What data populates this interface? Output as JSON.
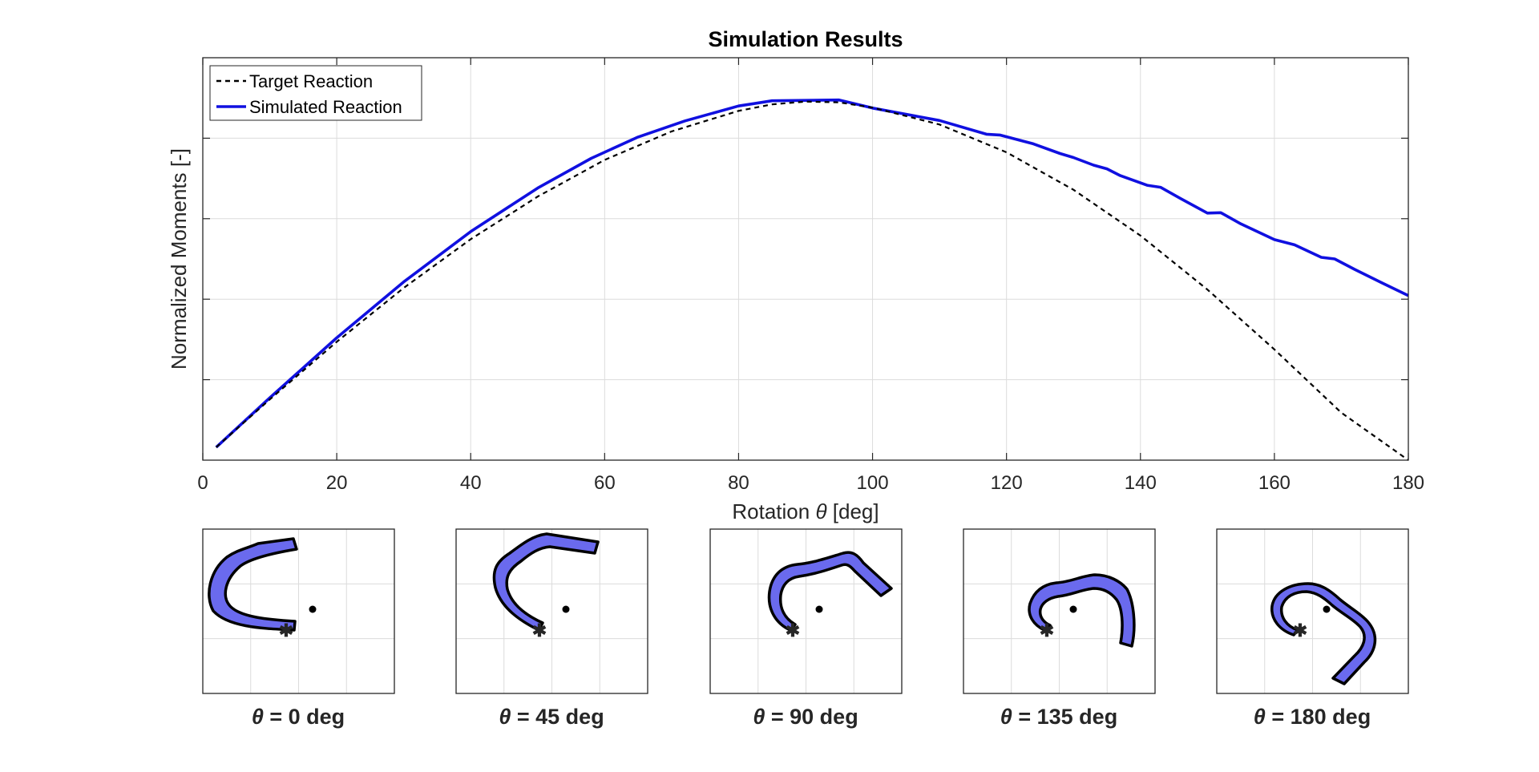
{
  "chart_data": {
    "type": "line",
    "title": "Simulation Results",
    "xlabel_prefix": "Rotation ",
    "xlabel_symbol": "θ",
    "xlabel_suffix": " [deg]",
    "ylabel": "Normalized Moments [-]",
    "xlim": [
      0,
      180
    ],
    "ylim": [
      0,
      1
    ],
    "xticks": [
      0,
      20,
      40,
      60,
      80,
      100,
      120,
      140,
      160,
      180
    ],
    "yticks_unlabeled": [
      0.2,
      0.4,
      0.6,
      0.8
    ],
    "grid": true,
    "legend_position": "top-left",
    "series": [
      {
        "name": "Target Reaction",
        "style": "dashed",
        "color": "#000000",
        "x": [
          2,
          10,
          20,
          30,
          40,
          50,
          60,
          70,
          80,
          85,
          90,
          95,
          100,
          110,
          120,
          130,
          140,
          150,
          160,
          170,
          180
        ],
        "y": [
          0.032,
          0.151,
          0.294,
          0.428,
          0.549,
          0.655,
          0.746,
          0.817,
          0.868,
          0.884,
          0.891,
          0.889,
          0.876,
          0.834,
          0.765,
          0.672,
          0.558,
          0.424,
          0.275,
          0.118,
          0.0
        ]
      },
      {
        "name": "Simulated Reaction",
        "style": "solid",
        "color": "#1010e0",
        "x": [
          2,
          10,
          20,
          30,
          40,
          50,
          58,
          65,
          72,
          80,
          85,
          95,
          100,
          110,
          117,
          119,
          124,
          128,
          130,
          133,
          135,
          137,
          141,
          143,
          146,
          150,
          152,
          155,
          160,
          163,
          167,
          169,
          172,
          176,
          180
        ],
        "y": [
          0.032,
          0.155,
          0.304,
          0.443,
          0.568,
          0.676,
          0.75,
          0.803,
          0.843,
          0.88,
          0.893,
          0.895,
          0.875,
          0.844,
          0.81,
          0.808,
          0.786,
          0.762,
          0.752,
          0.733,
          0.724,
          0.707,
          0.683,
          0.678,
          0.65,
          0.614,
          0.615,
          0.587,
          0.548,
          0.535,
          0.504,
          0.5,
          0.474,
          0.441,
          0.409
        ]
      }
    ]
  },
  "snapshots": [
    {
      "caption_symbol": "θ",
      "caption_rest": " = 0 deg"
    },
    {
      "caption_symbol": "θ",
      "caption_rest": " = 45 deg"
    },
    {
      "caption_symbol": "θ",
      "caption_rest": " = 90 deg"
    },
    {
      "caption_symbol": "θ",
      "caption_rest": " = 135 deg"
    },
    {
      "caption_symbol": "θ",
      "caption_rest": " = 180 deg"
    }
  ],
  "colors": {
    "beam_fill": "#6a6aee",
    "beam_outline": "#000000"
  }
}
